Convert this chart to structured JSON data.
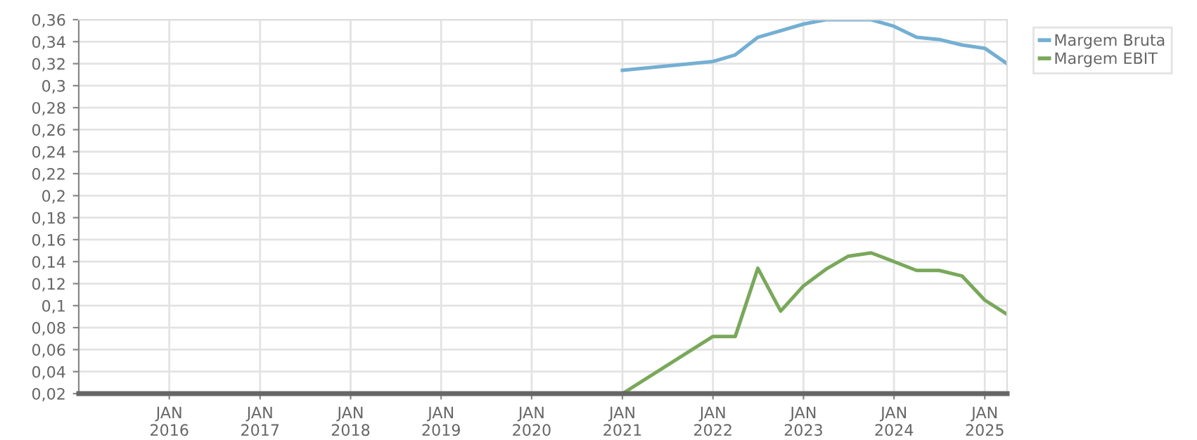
{
  "chart_data": {
    "type": "line",
    "series": [
      {
        "name": "Margem Bruta",
        "color": "#74afd3",
        "x": [
          "2021-01",
          "2022-01",
          "2022-04",
          "2022-07",
          "2023-01",
          "2023-04",
          "2023-07",
          "2023-10",
          "2024-01",
          "2024-04",
          "2024-07",
          "2024-10",
          "2025-01",
          "2025-04"
        ],
        "values": [
          0.314,
          0.322,
          0.328,
          0.344,
          0.356,
          0.36,
          0.36,
          0.36,
          0.354,
          0.344,
          0.342,
          0.337,
          0.334,
          0.32
        ]
      },
      {
        "name": "Margem EBIT",
        "color": "#79a85a",
        "x": [
          "2021-01",
          "2022-01",
          "2022-04",
          "2022-07",
          "2022-10",
          "2023-01",
          "2023-04",
          "2023-07",
          "2023-10",
          "2024-01",
          "2024-04",
          "2024-07",
          "2024-10",
          "2025-01",
          "2025-04"
        ],
        "values": [
          0.02,
          0.072,
          0.072,
          0.134,
          0.095,
          0.118,
          0.133,
          0.145,
          0.148,
          0.14,
          0.132,
          0.132,
          0.127,
          0.105,
          0.092
        ]
      }
    ],
    "xlim": [
      "2015-01",
      "2025-04"
    ],
    "xticks": [
      {
        "value": "2016-01",
        "label": "JAN\n2016"
      },
      {
        "value": "2017-01",
        "label": "JAN\n2017"
      },
      {
        "value": "2018-01",
        "label": "JAN\n2018"
      },
      {
        "value": "2019-01",
        "label": "JAN\n2019"
      },
      {
        "value": "2020-01",
        "label": "JAN\n2020"
      },
      {
        "value": "2021-01",
        "label": "JAN\n2021"
      },
      {
        "value": "2022-01",
        "label": "JAN\n2022"
      },
      {
        "value": "2023-01",
        "label": "JAN\n2023"
      },
      {
        "value": "2024-01",
        "label": "JAN\n2024"
      },
      {
        "value": "2025-01",
        "label": "JAN\n2025"
      }
    ],
    "ylim": [
      0.02,
      0.36
    ],
    "yticks": [
      {
        "value": 0.02,
        "label": "0,02"
      },
      {
        "value": 0.04,
        "label": "0,04"
      },
      {
        "value": 0.06,
        "label": "0,06"
      },
      {
        "value": 0.08,
        "label": "0,08"
      },
      {
        "value": 0.1,
        "label": "0,1"
      },
      {
        "value": 0.12,
        "label": "0,12"
      },
      {
        "value": 0.14,
        "label": "0,14"
      },
      {
        "value": 0.16,
        "label": "0,16"
      },
      {
        "value": 0.18,
        "label": "0,18"
      },
      {
        "value": 0.2,
        "label": "0,2"
      },
      {
        "value": 0.22,
        "label": "0,22"
      },
      {
        "value": 0.24,
        "label": "0,24"
      },
      {
        "value": 0.26,
        "label": "0,26"
      },
      {
        "value": 0.28,
        "label": "0,28"
      },
      {
        "value": 0.3,
        "label": "0,3"
      },
      {
        "value": 0.32,
        "label": "0,32"
      },
      {
        "value": 0.34,
        "label": "0,34"
      },
      {
        "value": 0.36,
        "label": "0,36"
      }
    ],
    "grid": true,
    "legend": "top right",
    "marker": "none",
    "line_style": "solid"
  }
}
